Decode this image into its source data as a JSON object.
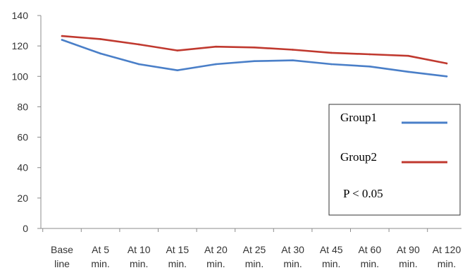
{
  "chart_data": {
    "type": "line",
    "title": "",
    "xlabel": "",
    "ylabel": "",
    "categories": [
      [
        "Base",
        "line"
      ],
      [
        "At 5",
        "min."
      ],
      [
        "At 10",
        "min."
      ],
      [
        "At 15",
        "min."
      ],
      [
        "At 20",
        "min."
      ],
      [
        "At 25",
        "min."
      ],
      [
        "At 30",
        "min."
      ],
      [
        "At 45",
        "min."
      ],
      [
        "At 60",
        "min."
      ],
      [
        "At 90",
        "min."
      ],
      [
        "At 120",
        "min."
      ]
    ],
    "yticks": [
      0,
      20,
      40,
      60,
      80,
      100,
      120,
      140
    ],
    "ylim": [
      0,
      140
    ],
    "grid": false,
    "series": [
      {
        "name": "Group1",
        "color": "#4a7fc8",
        "values": [
          124,
          115,
          108,
          104,
          108,
          110,
          110.5,
          108,
          106.5,
          103,
          100
        ]
      },
      {
        "name": "Group2",
        "color": "#c0392f",
        "values": [
          126.5,
          124.5,
          121,
          117,
          119.5,
          119,
          117.5,
          115.5,
          114.5,
          113.5,
          108.5
        ]
      }
    ],
    "legend": {
      "placement": "right",
      "note": "P < 0.05"
    }
  }
}
